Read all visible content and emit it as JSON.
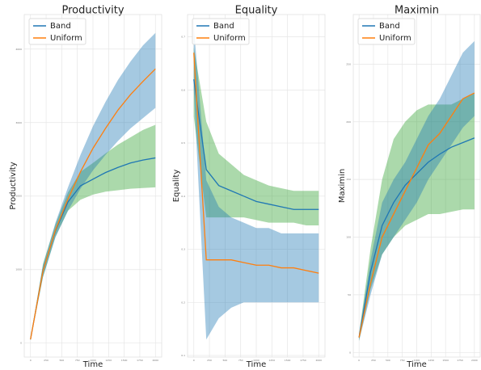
{
  "chart_data": [
    {
      "type": "line",
      "title": "Productivity",
      "xlabel": "Time",
      "ylabel": "Productivity",
      "x": [
        0,
        200,
        400,
        600,
        800,
        1000,
        1200,
        1400,
        1600,
        1800,
        2000
      ],
      "xlim": [
        -100,
        2100
      ],
      "xticks": [
        0,
        250,
        500,
        750,
        1000,
        1250,
        1500,
        1750,
        2000
      ],
      "ylim": [
        -190,
        4470
      ],
      "yticks": [
        0,
        1000,
        2000,
        3000,
        4000
      ],
      "grid": true,
      "legend": "upper left",
      "series": [
        {
          "name": "Band",
          "color": "#1f77b4",
          "band_color": "#2ca02c",
          "values": [
            50,
            990,
            1530,
            1920,
            2140,
            2230,
            2320,
            2390,
            2450,
            2490,
            2520
          ],
          "lower": [
            40,
            900,
            1450,
            1800,
            1950,
            2020,
            2060,
            2080,
            2100,
            2110,
            2120
          ],
          "upper": [
            60,
            1080,
            1620,
            2050,
            2330,
            2450,
            2580,
            2700,
            2800,
            2900,
            2970
          ]
        },
        {
          "name": "Uniform",
          "color": "#ff7f0e",
          "band_color": "#1f77b4",
          "values": [
            50,
            980,
            1540,
            1960,
            2330,
            2650,
            2920,
            3170,
            3380,
            3560,
            3730
          ],
          "lower": [
            40,
            900,
            1440,
            1800,
            2100,
            2350,
            2560,
            2750,
            2920,
            3060,
            3200
          ],
          "upper": [
            60,
            1060,
            1640,
            2120,
            2560,
            2950,
            3280,
            3580,
            3830,
            4050,
            4220
          ]
        }
      ]
    },
    {
      "type": "line",
      "title": "Equality",
      "xlabel": "Time",
      "ylabel": "Equality",
      "x": [
        0,
        200,
        400,
        600,
        800,
        1000,
        1200,
        1400,
        1600,
        1800,
        2000
      ],
      "xlim": [
        -100,
        2100
      ],
      "xticks": [
        0,
        250,
        500,
        750,
        1000,
        1250,
        1500,
        1750,
        2000
      ],
      "ylim": [
        0.097,
        0.742
      ],
      "yticks": [
        0.1,
        0.2,
        0.3,
        0.4,
        0.5,
        0.6,
        0.7
      ],
      "grid": true,
      "legend": "upper left",
      "series": [
        {
          "name": "Band",
          "color": "#1f77b4",
          "band_color": "#2ca02c",
          "values": [
            0.62,
            0.45,
            0.42,
            0.41,
            0.4,
            0.39,
            0.385,
            0.38,
            0.375,
            0.375,
            0.375
          ],
          "lower": [
            0.55,
            0.36,
            0.36,
            0.36,
            0.36,
            0.355,
            0.35,
            0.35,
            0.35,
            0.345,
            0.345
          ],
          "upper": [
            0.68,
            0.54,
            0.48,
            0.46,
            0.44,
            0.43,
            0.42,
            0.415,
            0.41,
            0.41,
            0.41
          ]
        },
        {
          "name": "Uniform",
          "color": "#ff7f0e",
          "band_color": "#1f77b4",
          "values": [
            0.67,
            0.28,
            0.28,
            0.28,
            0.275,
            0.27,
            0.27,
            0.265,
            0.265,
            0.26,
            0.255
          ],
          "lower": [
            0.6,
            0.13,
            0.17,
            0.19,
            0.2,
            0.2,
            0.2,
            0.2,
            0.2,
            0.2,
            0.2
          ],
          "upper": [
            0.72,
            0.43,
            0.38,
            0.36,
            0.35,
            0.34,
            0.34,
            0.33,
            0.33,
            0.33,
            0.33
          ]
        }
      ]
    },
    {
      "type": "line",
      "title": "Maximin",
      "xlabel": "Time",
      "ylabel": "Maximin",
      "x": [
        0,
        200,
        400,
        600,
        800,
        1000,
        1200,
        1400,
        1600,
        1800,
        2000
      ],
      "xlim": [
        -100,
        2100
      ],
      "xticks": [
        0,
        250,
        500,
        750,
        1000,
        1250,
        1500,
        1750,
        2000
      ],
      "ylim": [
        -4,
        293
      ],
      "yticks": [
        0,
        50,
        100,
        150,
        200,
        250
      ],
      "grid": true,
      "legend": "upper left",
      "series": [
        {
          "name": "Band",
          "color": "#1f77b4",
          "band_color": "#2ca02c",
          "values": [
            13,
            70,
            110,
            130,
            145,
            155,
            165,
            172,
            178,
            182,
            186
          ],
          "lower": [
            10,
            55,
            85,
            100,
            110,
            115,
            120,
            120,
            122,
            124,
            124
          ],
          "upper": [
            16,
            90,
            150,
            185,
            200,
            210,
            215,
            215,
            215,
            220,
            225
          ]
        },
        {
          "name": "Uniform",
          "color": "#ff7f0e",
          "band_color": "#1f77b4",
          "values": [
            13,
            60,
            100,
            120,
            140,
            160,
            180,
            190,
            205,
            220,
            225
          ],
          "lower": [
            10,
            50,
            85,
            100,
            115,
            130,
            150,
            165,
            180,
            195,
            205
          ],
          "upper": [
            16,
            80,
            130,
            150,
            165,
            185,
            205,
            220,
            240,
            260,
            270
          ]
        }
      ]
    }
  ]
}
